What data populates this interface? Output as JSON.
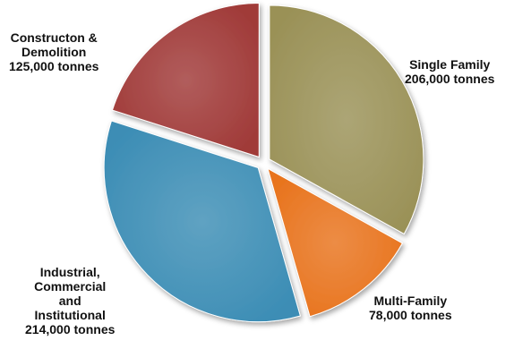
{
  "chart_data": {
    "type": "pie",
    "title": "",
    "unit": "tonnes",
    "slices": [
      {
        "name": "Single Family",
        "label_lines": [
          "Single Family"
        ],
        "value_label": "206,000 tonnes",
        "value": 206000,
        "color": "#9a9157"
      },
      {
        "name": "Multi-Family",
        "label_lines": [
          "Multi-Family"
        ],
        "value_label": "78,000 tonnes",
        "value": 78000,
        "color": "#e8731c"
      },
      {
        "name": "Industrial, Commercial and Institutional",
        "label_lines": [
          "Industrial,",
          "Commercial",
          "and",
          "Institutional"
        ],
        "value_label": "214,000 tonnes",
        "value": 214000,
        "color": "#3c8db5"
      },
      {
        "name": "Constructon & Demolition",
        "label_lines": [
          "Constructon &",
          "Demolition"
        ],
        "value_label": "125,000 tonnes",
        "value": 125000,
        "color": "#a03a38"
      }
    ],
    "start_angle_deg": 0,
    "direction": "clockwise",
    "exploded": true,
    "legend": "none"
  }
}
